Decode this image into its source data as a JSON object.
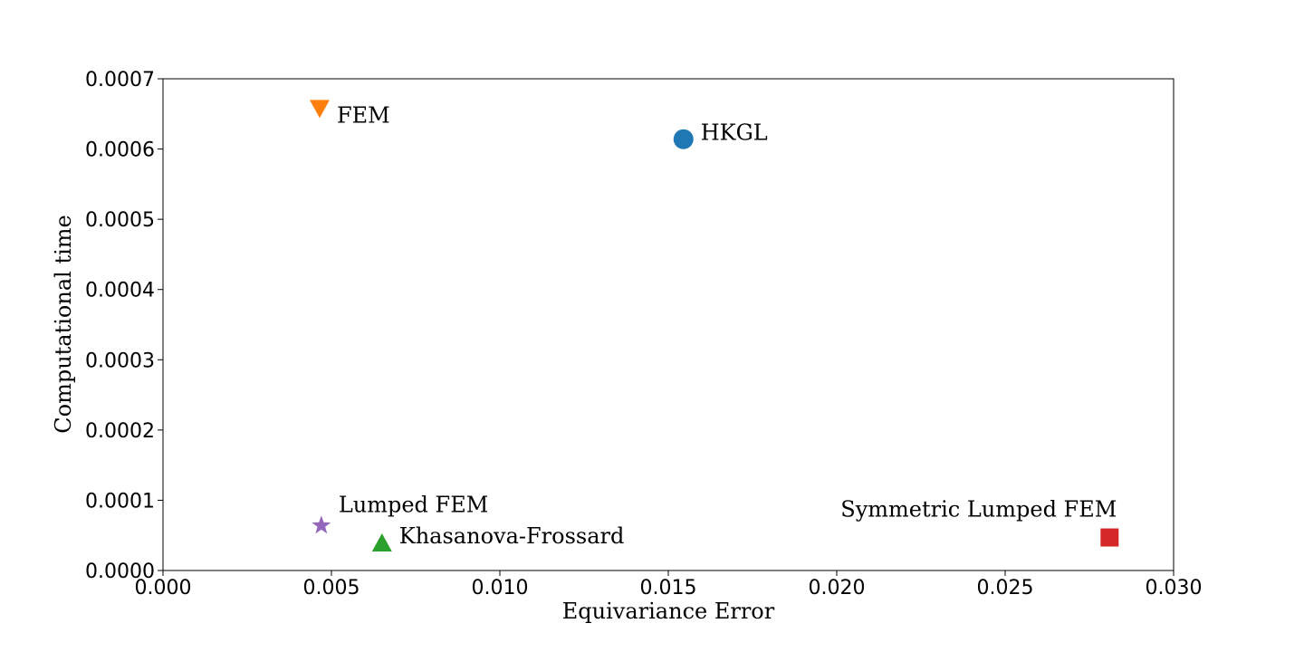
{
  "chart_data": {
    "type": "scatter",
    "title": "",
    "xlabel": "Equivariance Error",
    "ylabel": "Computational time",
    "xlim": [
      0.0,
      0.03
    ],
    "ylim": [
      0.0,
      0.0007
    ],
    "xticks": [
      "0.000",
      "0.005",
      "0.010",
      "0.015",
      "0.020",
      "0.025",
      "0.030"
    ],
    "yticks": [
      "0.0000",
      "0.0001",
      "0.0002",
      "0.0003",
      "0.0004",
      "0.0005",
      "0.0006",
      "0.0007"
    ],
    "grid": false,
    "points": [
      {
        "label": "HKGL",
        "x": 0.01545,
        "y": 0.000614,
        "marker": "circle",
        "color": "#1f77b4",
        "label_side": "right"
      },
      {
        "label": "FEM",
        "x": 0.00465,
        "y": 0.000657,
        "marker": "triangle-down",
        "color": "#ff7f0e",
        "label_side": "right-below"
      },
      {
        "label": "Khasanova-Frossard",
        "x": 0.0065,
        "y": 4e-05,
        "marker": "triangle-up",
        "color": "#2ca02c",
        "label_side": "right"
      },
      {
        "label": "Symmetric Lumped FEM",
        "x": 0.0281,
        "y": 4.7e-05,
        "marker": "square",
        "color": "#d62728",
        "label_side": "left-above"
      },
      {
        "label": "Lumped FEM",
        "x": 0.0047,
        "y": 6.4e-05,
        "marker": "star",
        "color": "#9467bd",
        "label_side": "right-above"
      }
    ]
  }
}
